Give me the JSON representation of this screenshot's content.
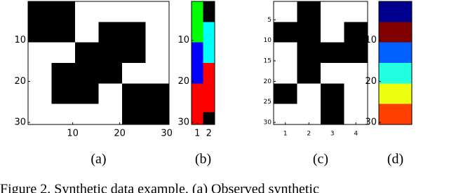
{
  "panels": [
    {
      "label": "(a)",
      "rows": 30,
      "cols": 30,
      "yticks": [
        10,
        20,
        30
      ],
      "xticks": [
        10,
        20,
        30
      ],
      "background": "#ffffff",
      "blocks": [
        {
          "r0": 1,
          "r1": 10,
          "c0": 1,
          "c1": 10,
          "color": "#000000"
        },
        {
          "r0": 6,
          "r1": 15,
          "c0": 16,
          "c1": 25,
          "color": "#000000"
        },
        {
          "r0": 11,
          "r1": 20,
          "c0": 11,
          "c1": 20,
          "color": "#000000"
        },
        {
          "r0": 16,
          "r1": 25,
          "c0": 6,
          "c1": 15,
          "color": "#000000"
        },
        {
          "r0": 21,
          "r1": 30,
          "c0": 21,
          "c1": 30,
          "color": "#000000"
        }
      ]
    },
    {
      "label": "(b)",
      "rows": 30,
      "cols": 2,
      "yticks": [
        10,
        20,
        30
      ],
      "xticks": [
        1,
        2
      ],
      "background": "#ffffff",
      "blocks": [
        {
          "r0": 1,
          "r1": 10,
          "c0": 1,
          "c1": 1,
          "color": "#00ff00"
        },
        {
          "r0": 11,
          "r1": 20,
          "c0": 1,
          "c1": 1,
          "color": "#0000ff"
        },
        {
          "r0": 21,
          "r1": 30,
          "c0": 1,
          "c1": 1,
          "color": "#ff0000"
        },
        {
          "r0": 1,
          "r1": 5,
          "c0": 2,
          "c1": 2,
          "color": "#000000"
        },
        {
          "r0": 6,
          "r1": 15,
          "c0": 2,
          "c1": 2,
          "color": "#00ffff"
        },
        {
          "r0": 16,
          "r1": 27,
          "c0": 2,
          "c1": 2,
          "color": "#ff0000"
        },
        {
          "r0": 28,
          "r1": 30,
          "c0": 2,
          "c1": 2,
          "color": "#000000"
        }
      ]
    },
    {
      "label": "(c)",
      "rows": 30,
      "cols": 4,
      "yticks": [
        5,
        10,
        15,
        20,
        25,
        30
      ],
      "xticks": [
        1,
        2,
        3,
        4
      ],
      "background": "#ffffff",
      "blocks": [
        {
          "r0": 1,
          "r1": 20,
          "c0": 2,
          "c1": 2,
          "color": "#000000"
        },
        {
          "r0": 6,
          "r1": 10,
          "c0": 1,
          "c1": 1,
          "color": "#000000"
        },
        {
          "r0": 6,
          "r1": 15,
          "c0": 4,
          "c1": 4,
          "color": "#000000"
        },
        {
          "r0": 11,
          "r1": 15,
          "c0": 3,
          "c1": 3,
          "color": "#000000"
        },
        {
          "r0": 21,
          "r1": 30,
          "c0": 3,
          "c1": 3,
          "color": "#000000"
        },
        {
          "r0": 21,
          "r1": 25,
          "c0": 1,
          "c1": 1,
          "color": "#000000"
        }
      ]
    },
    {
      "label": "(d)",
      "rows": 30,
      "cols": 1,
      "yticks": [
        10,
        20,
        30
      ],
      "xticks": [],
      "background": "#ffffff",
      "blocks": [
        {
          "r0": 1,
          "r1": 5,
          "c0": 1,
          "c1": 1,
          "color": "#00008f"
        },
        {
          "r0": 6,
          "r1": 10,
          "c0": 1,
          "c1": 1,
          "color": "#800000"
        },
        {
          "r0": 11,
          "r1": 15,
          "c0": 1,
          "c1": 1,
          "color": "#0060ff"
        },
        {
          "r0": 16,
          "r1": 20,
          "c0": 1,
          "c1": 1,
          "color": "#20ffdf"
        },
        {
          "r0": 21,
          "r1": 25,
          "c0": 1,
          "c1": 1,
          "color": "#efff10"
        },
        {
          "r0": 26,
          "r1": 30,
          "c0": 1,
          "c1": 1,
          "color": "#ff4000"
        }
      ]
    }
  ],
  "caption": "Figure 2. Synthetic data example. (a) Observed synthetic"
}
